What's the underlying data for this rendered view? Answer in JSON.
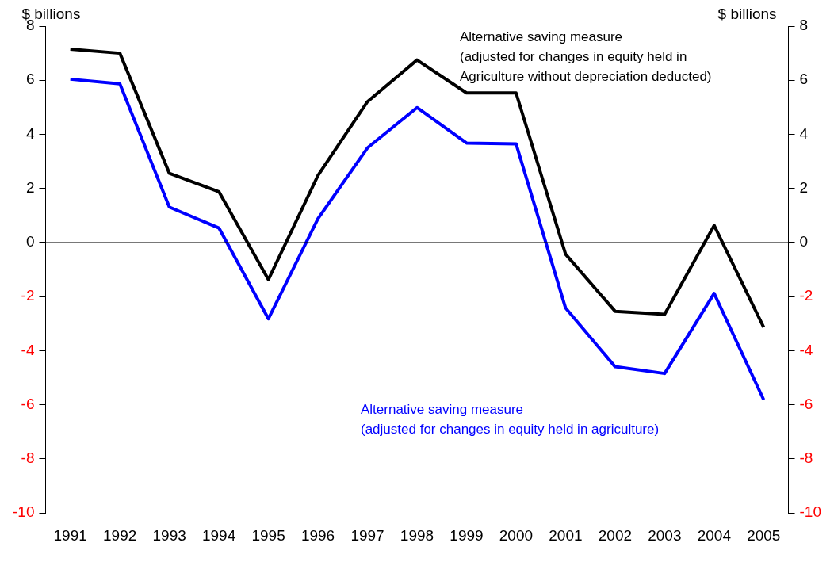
{
  "chart_data": {
    "type": "line",
    "ylabel": "$ billions",
    "y2label": "$ billions",
    "categories": [
      "1991",
      "1992",
      "1993",
      "1994",
      "1995",
      "1996",
      "1997",
      "1998",
      "1999",
      "2000",
      "2001",
      "2002",
      "2003",
      "2004",
      "2005"
    ],
    "series": [
      {
        "name": "Alternative saving measure (adjusted for changes in equity held in Agriculture without depreciation deducted)",
        "color": "#000000",
        "values": [
          7.15,
          7.0,
          2.56,
          1.88,
          -1.37,
          2.48,
          5.21,
          6.75,
          5.53,
          5.53,
          -0.43,
          -2.54,
          -2.65,
          0.63,
          -3.13
        ]
      },
      {
        "name": "Alternative saving measure (adjusted for changes in equity held in agriculture)",
        "color": "#0000ff",
        "values": [
          6.04,
          5.87,
          1.31,
          0.54,
          -2.82,
          0.88,
          3.5,
          4.99,
          3.68,
          3.65,
          -2.42,
          -4.59,
          -4.84,
          -1.88,
          -5.81
        ]
      }
    ],
    "ylim": [
      -10,
      8
    ],
    "yticks": [
      -10,
      -8,
      -6,
      -4,
      -2,
      0,
      2,
      4,
      6,
      8
    ],
    "y2lim": [
      -10,
      8
    ],
    "y2ticks": [
      -10,
      -8,
      -6,
      -4,
      -2,
      0,
      2,
      4,
      6,
      8
    ],
    "ref_lines": [
      {
        "axis": "y",
        "value": 0,
        "color": "#000000"
      }
    ],
    "grid": false,
    "legend": false,
    "marker": "none",
    "line_style": "solid"
  }
}
